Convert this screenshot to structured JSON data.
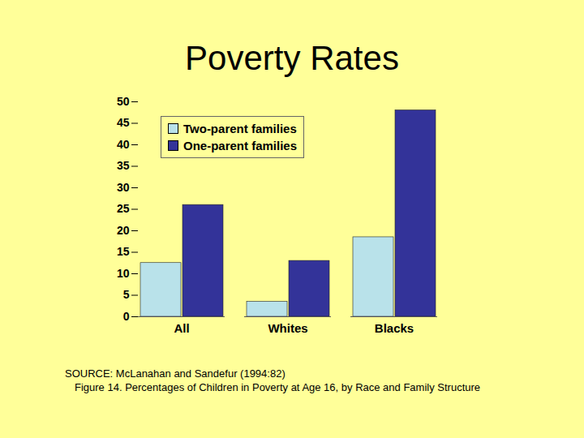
{
  "chart_data": {
    "type": "bar",
    "title": "Poverty Rates",
    "categories": [
      "All",
      "Whites",
      "Blacks"
    ],
    "series": [
      {
        "name": "Two-parent families",
        "color": "#b9e2ea",
        "values": [
          12.5,
          3.5,
          18.5
        ]
      },
      {
        "name": "One-parent families",
        "color": "#333399",
        "values": [
          26,
          13,
          48
        ]
      }
    ],
    "ylim": [
      0,
      50
    ],
    "yticks": [
      0,
      5,
      10,
      15,
      20,
      25,
      30,
      35,
      40,
      45,
      50
    ],
    "grid": false,
    "legend": "top-left",
    "annotations": [
      "SOURCE: McLanahan and Sandefur (1994:82)",
      "Figure 14. Percentages of Children in Poverty at Age 16, by Race and Family Structure"
    ]
  }
}
